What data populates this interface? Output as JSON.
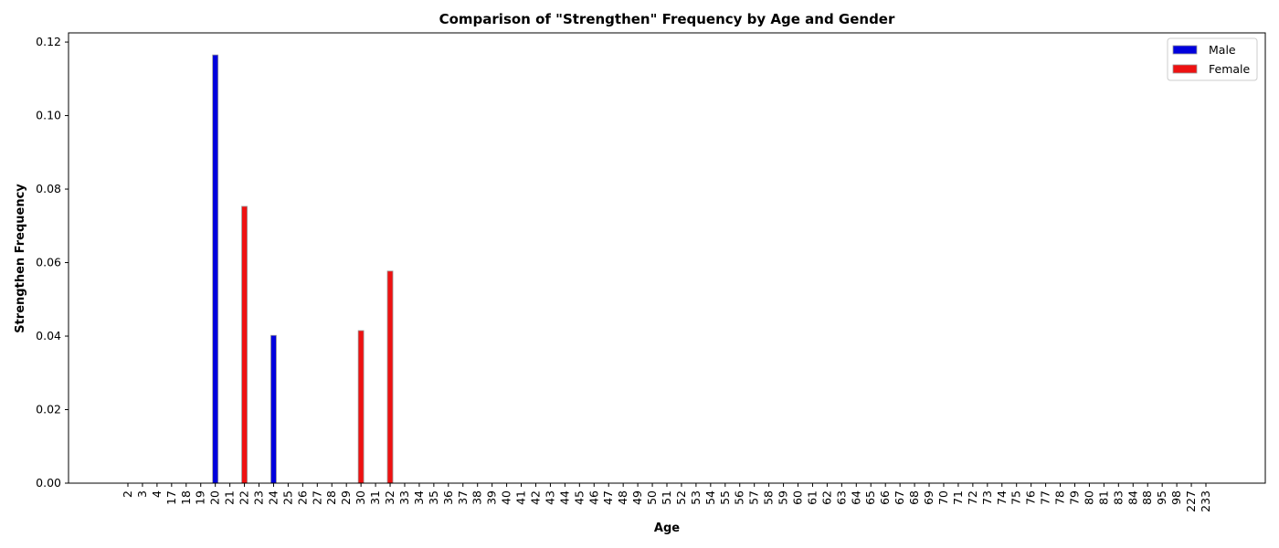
{
  "chart_data": {
    "type": "bar",
    "title": "Comparison of \"Strengthen\" Frequency by Age and Gender",
    "xlabel": "Age",
    "ylabel": "Strengthen Frequency",
    "ylim": [
      0,
      0.1225
    ],
    "yticks": [
      "0.00",
      "0.02",
      "0.04",
      "0.06",
      "0.08",
      "0.10",
      "0.12"
    ],
    "grid": false,
    "legend_placement": "top-right",
    "categories": [
      "2",
      "3",
      "4",
      "17",
      "18",
      "19",
      "20",
      "21",
      "22",
      "23",
      "24",
      "25",
      "26",
      "27",
      "28",
      "29",
      "30",
      "31",
      "32",
      "33",
      "34",
      "35",
      "36",
      "37",
      "38",
      "39",
      "40",
      "41",
      "42",
      "43",
      "44",
      "45",
      "46",
      "47",
      "48",
      "49",
      "50",
      "51",
      "52",
      "53",
      "54",
      "55",
      "56",
      "57",
      "58",
      "59",
      "60",
      "61",
      "62",
      "63",
      "64",
      "65",
      "66",
      "67",
      "68",
      "69",
      "70",
      "71",
      "72",
      "73",
      "74",
      "75",
      "76",
      "77",
      "78",
      "79",
      "80",
      "81",
      "83",
      "84",
      "88",
      "95",
      "98",
      "227",
      "233"
    ],
    "series": [
      {
        "name": "Male",
        "color": "#0000dd",
        "values": [
          0,
          0,
          0,
          0,
          0,
          0,
          0.1165,
          0,
          0,
          0,
          0.0402,
          0,
          0,
          0,
          0,
          0,
          0,
          0,
          0,
          0,
          0,
          0,
          0,
          0,
          0,
          0,
          0,
          0,
          0,
          0,
          0,
          0,
          0,
          0,
          0,
          0,
          0,
          0,
          0,
          0,
          0,
          0,
          0,
          0,
          0,
          0,
          0,
          0,
          0,
          0,
          0,
          0,
          0,
          0,
          0,
          0,
          0,
          0,
          0,
          0,
          0,
          0,
          0,
          0,
          0,
          0,
          0,
          0,
          0,
          0,
          0,
          0,
          0,
          0,
          0
        ]
      },
      {
        "name": "Female",
        "color": "#ee1111",
        "values": [
          0,
          0,
          0,
          0,
          0,
          0,
          0,
          0,
          0.0753,
          0,
          0,
          0,
          0,
          0,
          0,
          0,
          0.0415,
          0,
          0.0577,
          0,
          0,
          0,
          0,
          0,
          0,
          0,
          0,
          0,
          0,
          0,
          0,
          0,
          0,
          0,
          0,
          0,
          0,
          0,
          0,
          0,
          0,
          0,
          0,
          0,
          0,
          0,
          0,
          0,
          0,
          0,
          0,
          0,
          0,
          0,
          0,
          0,
          0,
          0,
          0,
          0,
          0,
          0,
          0,
          0,
          0,
          0,
          0,
          0,
          0,
          0,
          0,
          0,
          0,
          0,
          0
        ]
      }
    ]
  }
}
